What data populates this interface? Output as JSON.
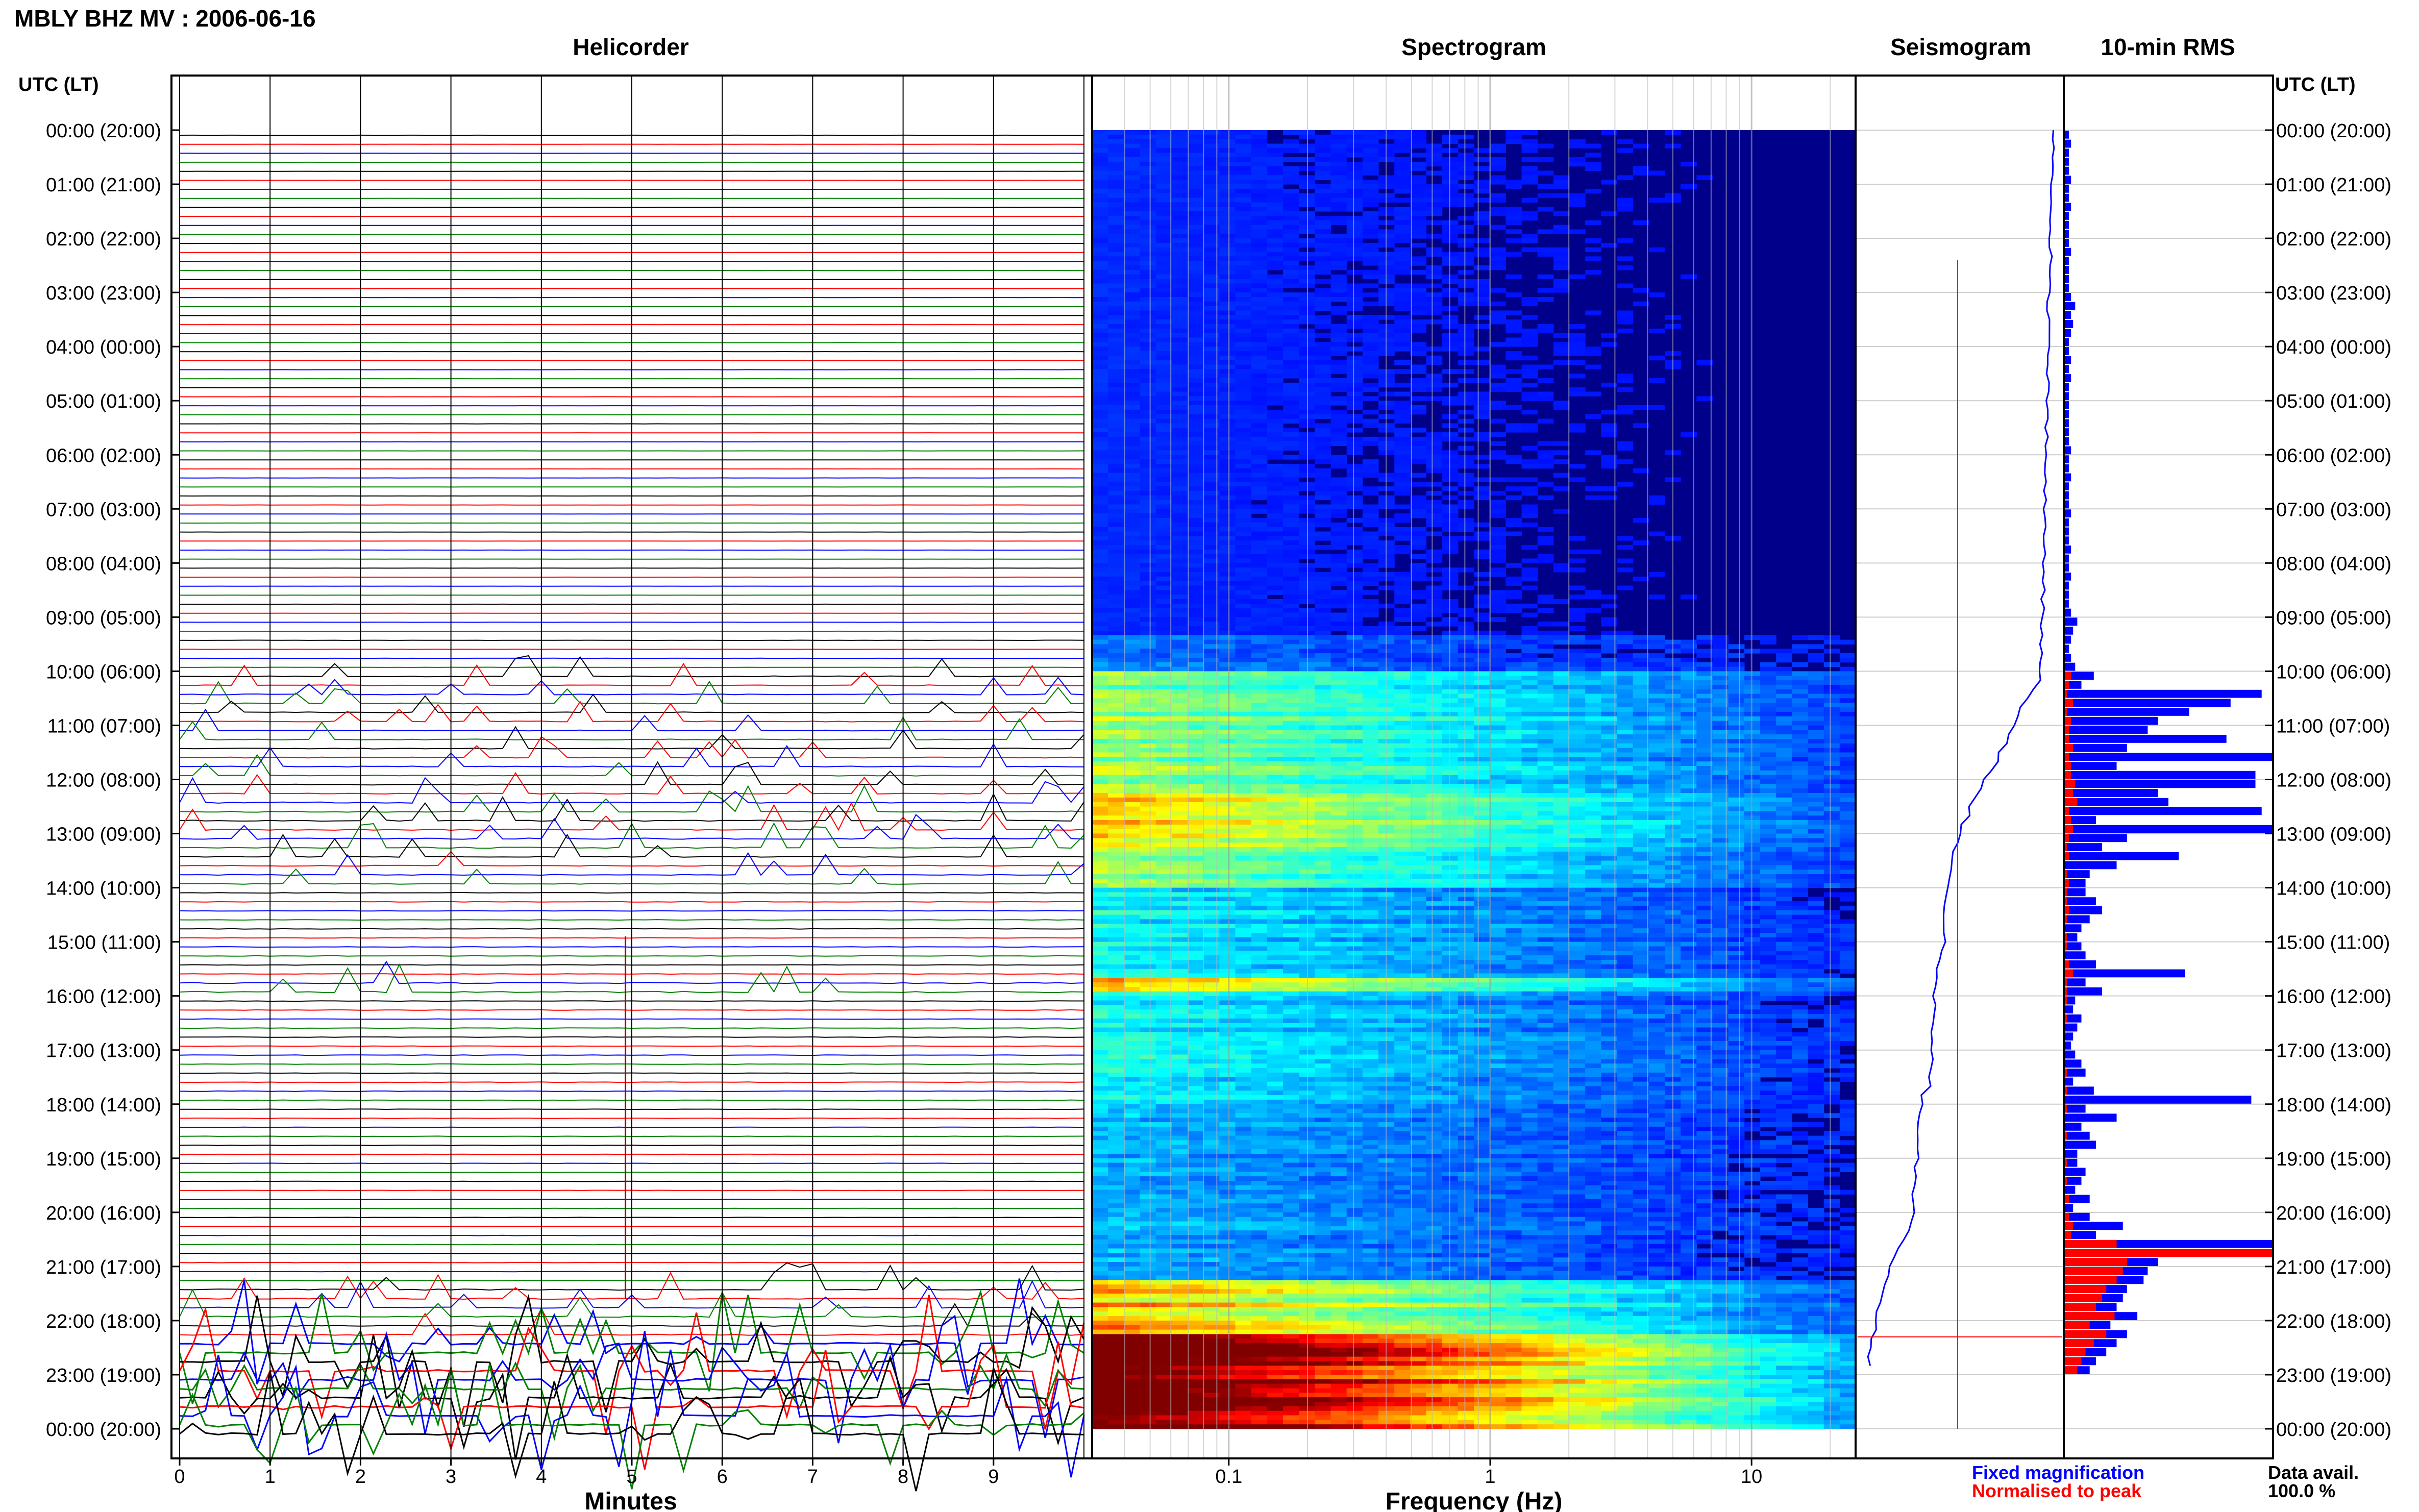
{
  "header": {
    "station_title": "MBLY BHZ MV : 2006-06-16",
    "tz_label_left": "UTC (LT)",
    "tz_label_right": "UTC (LT)"
  },
  "panels": {
    "helicorder": "Helicorder",
    "spectrogram": "Spectrogram",
    "seismogram": "Seismogram",
    "rms": "10-min RMS"
  },
  "time_labels": [
    "00:00 (20:00)",
    "01:00 (21:00)",
    "02:00 (22:00)",
    "03:00 (23:00)",
    "04:00 (00:00)",
    "05:00 (01:00)",
    "06:00 (02:00)",
    "07:00 (03:00)",
    "08:00 (04:00)",
    "09:00 (05:00)",
    "10:00 (06:00)",
    "11:00 (07:00)",
    "12:00 (08:00)",
    "13:00 (09:00)",
    "14:00 (10:00)",
    "15:00 (11:00)",
    "16:00 (12:00)",
    "17:00 (13:00)",
    "18:00 (14:00)",
    "19:00 (15:00)",
    "20:00 (16:00)",
    "21:00 (17:00)",
    "22:00 (18:00)",
    "23:00 (19:00)",
    "00:00 (20:00)"
  ],
  "footer": {
    "minutes_label": "Minutes",
    "frequency_label": "Frequency (Hz)",
    "legend_fixed": "Fixed magnification",
    "legend_normalised": "Normalised to peak",
    "data_avail_label": "Data avail.",
    "data_avail_value": "100.0 %"
  },
  "colors": {
    "fixed_magnification": "#0000ff",
    "normalised_to_peak": "#ff0000",
    "spectrogram_background": "#00008b",
    "helicorder_trace_cycle": [
      "#000000",
      "#ff0000",
      "#0000ff",
      "#008000"
    ]
  },
  "chart_data": [
    {
      "type": "helicorder",
      "title": "Helicorder",
      "xlabel": "Minutes",
      "x_ticks": [
        "0",
        "1",
        "2",
        "3",
        "4",
        "5",
        "6",
        "7",
        "8",
        "9"
      ],
      "xlim": [
        0,
        10
      ],
      "ylim_utc_hours": [
        0,
        24
      ],
      "traces_per_hour": 6,
      "activity_bursts_utc_hours": [
        {
          "start": 10.0,
          "end": 14.0,
          "level": "moderate"
        },
        {
          "start": 15.5,
          "end": 16.0,
          "level": "moderate"
        },
        {
          "start": 21.2,
          "end": 24.0,
          "level": "high"
        }
      ]
    },
    {
      "type": "heatmap",
      "title": "Spectrogram",
      "xlabel": "Frequency (Hz)",
      "x_scale": "log",
      "xlim": [
        0.03,
        25
      ],
      "x_ticks": [
        "0.1",
        "1",
        "10"
      ],
      "ylim_utc_hours": [
        0,
        24
      ],
      "colormap": "jet",
      "notes": [
        "strong low-frequency energy 10:00–14:00 UTC",
        "band near 15:45 UTC",
        "broadband high energy after 22:15 UTC"
      ]
    },
    {
      "type": "line",
      "title": "Seismogram",
      "series": [
        {
          "name": "Fixed magnification",
          "color": "#0000ff"
        },
        {
          "name": "Normalised to peak",
          "color": "#ff0000"
        }
      ]
    },
    {
      "type": "bar",
      "orientation": "horizontal",
      "title": "10-min RMS",
      "bin_minutes": 10,
      "ylim_utc_hours": [
        0,
        24
      ],
      "xlim": [
        0,
        100
      ],
      "series": [
        {
          "name": "Fixed magnification",
          "color": "#0000ff",
          "values": [
            2,
            3,
            2,
            2,
            2,
            3,
            2,
            2,
            3,
            2,
            2,
            2,
            2,
            3,
            2,
            2,
            2,
            2,
            3,
            5,
            3,
            4,
            3,
            2,
            2,
            3,
            2,
            3,
            2,
            2,
            2,
            2,
            2,
            2,
            2,
            3,
            2,
            2,
            3,
            2,
            2,
            2,
            3,
            2,
            2,
            2,
            3,
            2,
            2,
            3,
            2,
            2,
            2,
            3,
            6,
            4,
            3,
            2,
            3,
            5,
            14,
            8,
            95,
            80,
            60,
            45,
            40,
            78,
            30,
            100,
            25,
            92,
            92,
            45,
            50,
            95,
            15,
            100,
            30,
            18,
            55,
            25,
            12,
            10,
            10,
            15,
            18,
            12,
            8,
            6,
            8,
            10,
            15,
            58,
            10,
            18,
            5,
            4,
            8,
            6,
            4,
            3,
            5,
            8,
            10,
            4,
            14,
            90,
            10,
            25,
            8,
            12,
            15,
            6,
            6,
            10,
            8,
            5,
            12,
            4,
            12,
            28,
            15,
            100,
            75,
            45,
            40,
            38,
            30,
            28,
            25,
            35,
            22,
            30,
            25,
            20,
            15,
            12
          ]
        },
        {
          "name": "Normalised to peak",
          "color": "#ff0000",
          "values": [
            0,
            0,
            0,
            0,
            0,
            0,
            0,
            0,
            0,
            0,
            0,
            0,
            0,
            0,
            0,
            0,
            0,
            0,
            0,
            0,
            0,
            0,
            0,
            0,
            0,
            0,
            0,
            0,
            0,
            0,
            0,
            0,
            0,
            0,
            0,
            0,
            0,
            0,
            0,
            0,
            0,
            0,
            0,
            0,
            0,
            0,
            0,
            0,
            0,
            0,
            0,
            0,
            0,
            0,
            0,
            0,
            0,
            0,
            0,
            0,
            3,
            2,
            1,
            4,
            1,
            3,
            2,
            2,
            4,
            2,
            3,
            3,
            5,
            4,
            6,
            2,
            3,
            4,
            2,
            1,
            2,
            0,
            1,
            2,
            1,
            1,
            2,
            1,
            0,
            1,
            1,
            0,
            2,
            4,
            1,
            1,
            1,
            0,
            1,
            0,
            0,
            0,
            0,
            0,
            1,
            0,
            1,
            0,
            1,
            0,
            0,
            1,
            0,
            0,
            1,
            0,
            1,
            0,
            2,
            0,
            2,
            4,
            3,
            25,
            100,
            30,
            28,
            25,
            20,
            18,
            15,
            24,
            12,
            20,
            14,
            10,
            8,
            6
          ]
        }
      ]
    }
  ]
}
